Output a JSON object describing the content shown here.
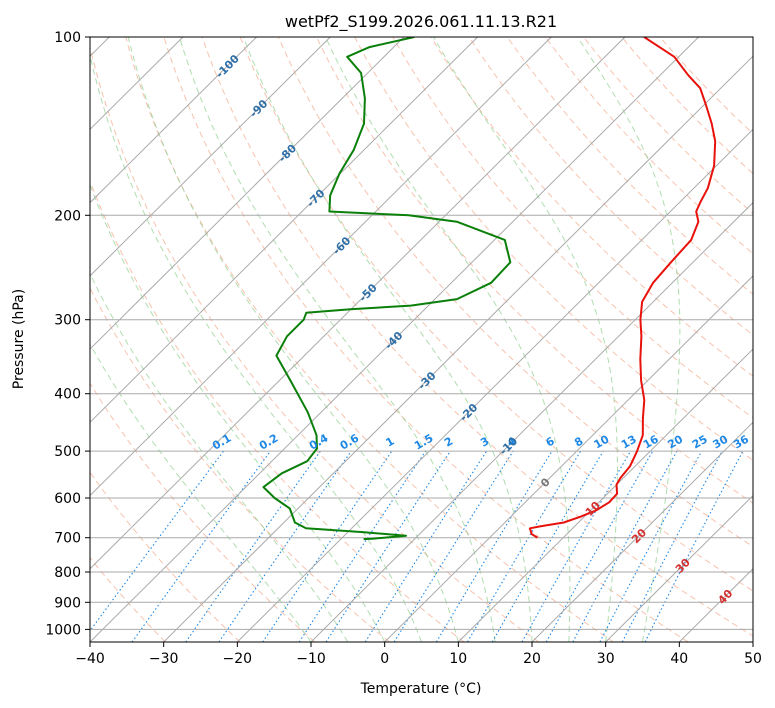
{
  "chart_data": {
    "type": "line",
    "title": "wetPf2_S199.2026.061.11.13.R21",
    "xlabel": "Temperature (°C)",
    "ylabel": "Pressure (hPa)",
    "xlim": [
      -40,
      50
    ],
    "ylim": [
      1050,
      100
    ],
    "y_scale": "log",
    "x_ticks": [
      "−40",
      "−30",
      "−20",
      "−10",
      "0",
      "10",
      "20",
      "30",
      "40",
      "50"
    ],
    "y_ticks": [
      "100",
      "200",
      "300",
      "400",
      "500",
      "600",
      "700",
      "800",
      "900",
      "1000"
    ],
    "grid": true,
    "skew_deg_per_log10": 80.9,
    "dry_adiabats_K": [
      230,
      240,
      250,
      260,
      270,
      280,
      290,
      300,
      310,
      320,
      330,
      340,
      350,
      360,
      370,
      380,
      390,
      400,
      410,
      420,
      430,
      440
    ],
    "moist_adiabats_C": [
      -10,
      -5,
      0,
      5,
      10,
      15,
      20,
      25,
      30,
      35
    ],
    "isotherms_C": [
      -140,
      -130,
      -120,
      -110,
      -100,
      -90,
      -80,
      -70,
      -60,
      -50,
      -40,
      -30,
      -20,
      -10,
      0,
      10,
      20,
      30,
      40,
      50
    ],
    "mixing_ratio_labels": [
      "0.1",
      "0.2",
      "0.4",
      "0.6",
      "1",
      "1.5",
      "2",
      "3",
      "4",
      "6",
      "8",
      "10",
      "13",
      "16",
      "20",
      "25",
      "30",
      "36"
    ],
    "mixing_ratio_values": [
      0.1,
      0.2,
      0.4,
      0.6,
      1,
      1.5,
      2,
      3,
      4,
      6,
      8,
      10,
      13,
      16,
      20,
      25,
      30,
      36
    ],
    "blue_isotherm_labels": [
      {
        "text": "-100",
        "p": 112
      },
      {
        "text": "-90",
        "p": 132
      },
      {
        "text": "-80",
        "p": 157
      },
      {
        "text": "-70",
        "p": 187
      },
      {
        "text": "-60",
        "p": 225
      },
      {
        "text": "-50",
        "p": 270
      },
      {
        "text": "-40",
        "p": 325
      },
      {
        "text": "-30",
        "p": 380
      },
      {
        "text": "-20",
        "p": 430
      },
      {
        "text": "-10",
        "p": 490
      }
    ],
    "red_isotherm_labels": [
      {
        "text": "0",
        "p": 565
      },
      {
        "text": "10",
        "p": 625
      },
      {
        "text": "20",
        "p": 695
      },
      {
        "text": "30",
        "p": 780
      },
      {
        "text": "40",
        "p": 880
      }
    ],
    "series": [
      {
        "name": "",
        "color": "#e8120c",
        "points": [
          {
            "p": 700,
            "t": 6.5
          },
          {
            "p": 690,
            "t": 5.2
          },
          {
            "p": 675,
            "t": 4.2
          },
          {
            "p": 670,
            "t": 5.3
          },
          {
            "p": 660,
            "t": 8.0
          },
          {
            "p": 645,
            "t": 9.5
          },
          {
            "p": 630,
            "t": 10.7
          },
          {
            "p": 610,
            "t": 11.4
          },
          {
            "p": 590,
            "t": 11.3
          },
          {
            "p": 570,
            "t": 10.0
          },
          {
            "p": 555,
            "t": 9.6
          },
          {
            "p": 530,
            "t": 9.3
          },
          {
            "p": 500,
            "t": 8.2
          },
          {
            "p": 470,
            "t": 6.8
          },
          {
            "p": 440,
            "t": 4.5
          },
          {
            "p": 410,
            "t": 2.2
          },
          {
            "p": 380,
            "t": -0.9
          },
          {
            "p": 350,
            "t": -3.9
          },
          {
            "p": 320,
            "t": -6.9
          },
          {
            "p": 300,
            "t": -9.3
          },
          {
            "p": 280,
            "t": -11.5
          },
          {
            "p": 260,
            "t": -12.6
          },
          {
            "p": 240,
            "t": -13.0
          },
          {
            "p": 220,
            "t": -13.3
          },
          {
            "p": 205,
            "t": -14.8
          },
          {
            "p": 197,
            "t": -16.5
          },
          {
            "p": 190,
            "t": -17.2
          },
          {
            "p": 180,
            "t": -18.1
          },
          {
            "p": 165,
            "t": -20.3
          },
          {
            "p": 150,
            "t": -23.5
          },
          {
            "p": 140,
            "t": -26.4
          },
          {
            "p": 130,
            "t": -29.8
          },
          {
            "p": 122,
            "t": -32.8
          },
          {
            "p": 116,
            "t": -36.2
          },
          {
            "p": 108,
            "t": -40.6
          },
          {
            "p": 100,
            "t": -47.4
          }
        ]
      },
      {
        "name": "",
        "color": "#0a7f0a",
        "points": [
          {
            "p": 704,
            "t": -16.9
          },
          {
            "p": 703,
            "t": -15.8
          },
          {
            "p": 695,
            "t": -11.6
          },
          {
            "p": 685,
            "t": -18.0
          },
          {
            "p": 675,
            "t": -26.2
          },
          {
            "p": 660,
            "t": -28.5
          },
          {
            "p": 625,
            "t": -31.1
          },
          {
            "p": 600,
            "t": -34.6
          },
          {
            "p": 575,
            "t": -37.6
          },
          {
            "p": 545,
            "t": -37.0
          },
          {
            "p": 520,
            "t": -35.2
          },
          {
            "p": 495,
            "t": -35.6
          },
          {
            "p": 470,
            "t": -37.5
          },
          {
            "p": 430,
            "t": -41.8
          },
          {
            "p": 380,
            "t": -48.5
          },
          {
            "p": 345,
            "t": -53.8
          },
          {
            "p": 320,
            "t": -55.0
          },
          {
            "p": 300,
            "t": -55.0
          },
          {
            "p": 292,
            "t": -55.6
          },
          {
            "p": 288,
            "t": -50.1
          },
          {
            "p": 284,
            "t": -42.4
          },
          {
            "p": 277,
            "t": -37.0
          },
          {
            "p": 260,
            "t": -34.6
          },
          {
            "p": 240,
            "t": -34.8
          },
          {
            "p": 220,
            "t": -38.6
          },
          {
            "p": 205,
            "t": -47.6
          },
          {
            "p": 200,
            "t": -55.0
          },
          {
            "p": 197,
            "t": -66.3
          },
          {
            "p": 185,
            "t": -68.4
          },
          {
            "p": 170,
            "t": -70.1
          },
          {
            "p": 155,
            "t": -71.4
          },
          {
            "p": 140,
            "t": -73.6
          },
          {
            "p": 127,
            "t": -76.9
          },
          {
            "p": 115,
            "t": -80.9
          },
          {
            "p": 108,
            "t": -85.0
          },
          {
            "p": 104,
            "t": -83.3
          },
          {
            "p": 100,
            "t": -78.6
          }
        ]
      }
    ]
  }
}
